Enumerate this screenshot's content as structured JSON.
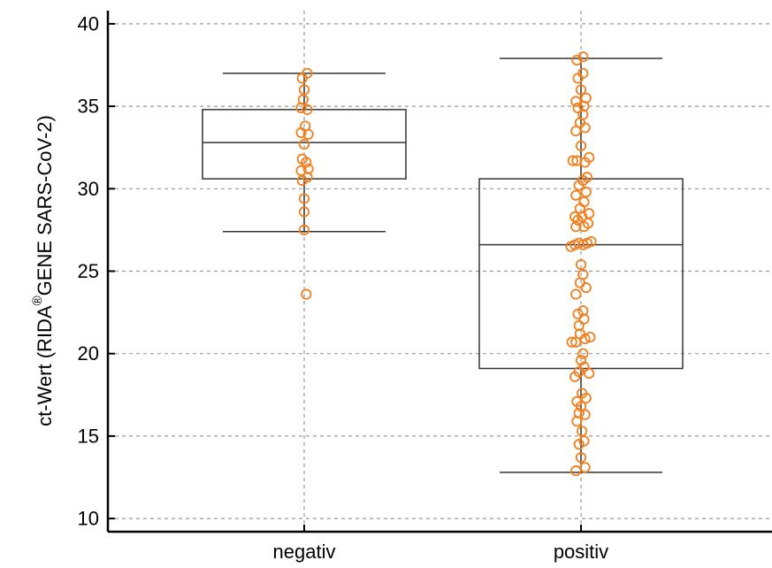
{
  "chart_data": {
    "type": "box",
    "ylabel": "ct-Wert (RIDA®GENE SARS-CoV-2)",
    "ylabel_main": "ct-Wert (RIDA",
    "ylabel_sup": "®",
    "ylabel_rest": "GENE SARS-CoV-2)",
    "xlabel": "",
    "ylim": [
      9.2,
      40.8
    ],
    "yticks": [
      10,
      15,
      20,
      25,
      30,
      35,
      40
    ],
    "categories": [
      "negativ",
      "positiv"
    ],
    "grid": true,
    "colors": {
      "points": "#f07f1e",
      "box": "#333333",
      "grid": "#9a9a9a",
      "axis": "#000000"
    },
    "series": [
      {
        "category": "negativ",
        "box": {
          "whisker_low": 27.4,
          "q1": 30.6,
          "median": 32.8,
          "q3": 34.8,
          "whisker_high": 37.0
        },
        "points": [
          [
            0.02,
            23.6
          ],
          [
            0.0,
            27.5
          ],
          [
            0.0,
            28.6
          ],
          [
            0.0,
            29.4
          ],
          [
            -0.02,
            30.5
          ],
          [
            0.03,
            30.7
          ],
          [
            0.04,
            31.2
          ],
          [
            -0.03,
            31.1
          ],
          [
            0.02,
            31.6
          ],
          [
            -0.02,
            31.8
          ],
          [
            0.0,
            32.7
          ],
          [
            0.04,
            33.3
          ],
          [
            -0.03,
            33.4
          ],
          [
            0.01,
            33.8
          ],
          [
            -0.03,
            34.9
          ],
          [
            0.03,
            34.8
          ],
          [
            -0.01,
            35.4
          ],
          [
            0.0,
            36.0
          ],
          [
            -0.02,
            36.7
          ],
          [
            0.03,
            37.0
          ]
        ]
      },
      {
        "category": "positiv",
        "box": {
          "whisker_low": 12.8,
          "q1": 19.1,
          "median": 26.6,
          "q3": 30.6,
          "whisker_high": 37.9
        },
        "points": [
          [
            -0.05,
            12.9
          ],
          [
            0.04,
            13.1
          ],
          [
            0.0,
            13.7
          ],
          [
            -0.02,
            14.5
          ],
          [
            0.03,
            14.7
          ],
          [
            0.01,
            15.3
          ],
          [
            -0.04,
            15.9
          ],
          [
            0.04,
            16.3
          ],
          [
            -0.02,
            16.4
          ],
          [
            0.0,
            16.8
          ],
          [
            -0.04,
            17.1
          ],
          [
            0.05,
            17.3
          ],
          [
            0.01,
            17.6
          ],
          [
            -0.06,
            18.6
          ],
          [
            0.08,
            18.8
          ],
          [
            -0.02,
            18.9
          ],
          [
            0.03,
            19.2
          ],
          [
            0.0,
            19.6
          ],
          [
            0.02,
            20.0
          ],
          [
            -0.09,
            20.7
          ],
          [
            -0.05,
            20.7
          ],
          [
            0.04,
            20.9
          ],
          [
            0.09,
            21.0
          ],
          [
            -0.01,
            21.2
          ],
          [
            -0.02,
            21.7
          ],
          [
            0.03,
            22.1
          ],
          [
            -0.03,
            22.4
          ],
          [
            0.02,
            22.6
          ],
          [
            -0.05,
            23.6
          ],
          [
            0.05,
            24.0
          ],
          [
            -0.01,
            24.3
          ],
          [
            0.02,
            24.8
          ],
          [
            0.0,
            25.4
          ],
          [
            -0.1,
            26.5
          ],
          [
            -0.06,
            26.6
          ],
          [
            -0.02,
            26.7
          ],
          [
            0.02,
            26.6
          ],
          [
            0.06,
            26.7
          ],
          [
            0.1,
            26.8
          ],
          [
            -0.05,
            27.7
          ],
          [
            0.03,
            27.7
          ],
          [
            0.07,
            27.9
          ],
          [
            -0.03,
            28.1
          ],
          [
            -0.06,
            28.3
          ],
          [
            0.01,
            28.3
          ],
          [
            0.08,
            28.5
          ],
          [
            -0.01,
            28.8
          ],
          [
            0.03,
            29.2
          ],
          [
            -0.05,
            29.6
          ],
          [
            0.05,
            29.8
          ],
          [
            -0.02,
            30.2
          ],
          [
            0.02,
            30.5
          ],
          [
            0.06,
            30.7
          ],
          [
            -0.08,
            31.7
          ],
          [
            -0.04,
            31.7
          ],
          [
            0.04,
            31.6
          ],
          [
            0.08,
            31.9
          ],
          [
            0.0,
            32.6
          ],
          [
            -0.05,
            33.5
          ],
          [
            0.04,
            33.7
          ],
          [
            -0.01,
            34.0
          ],
          [
            0.02,
            34.5
          ],
          [
            -0.03,
            34.9
          ],
          [
            0.03,
            35.0
          ],
          [
            -0.05,
            35.3
          ],
          [
            0.05,
            35.5
          ],
          [
            0.0,
            36.0
          ],
          [
            -0.03,
            36.7
          ],
          [
            0.02,
            37.0
          ],
          [
            -0.04,
            37.8
          ],
          [
            0.02,
            38.0
          ]
        ]
      }
    ]
  }
}
